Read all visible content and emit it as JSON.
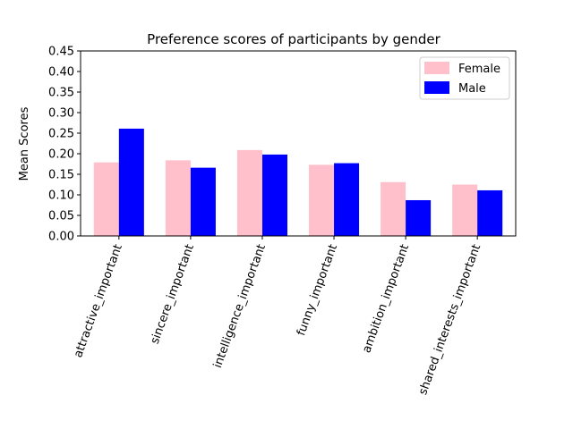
{
  "chart_data": {
    "type": "bar",
    "title": "Preference scores of participants by gender",
    "xlabel": "",
    "ylabel": "Mean Scores",
    "categories": [
      "attractive_important",
      "sincere_important",
      "intelligence_important",
      "funny_important",
      "ambition_important",
      "shared_interests_important"
    ],
    "series": [
      {
        "name": "Female",
        "color": "#ffc0cb",
        "values": [
          0.179,
          0.184,
          0.209,
          0.173,
          0.131,
          0.125
        ]
      },
      {
        "name": "Male",
        "color": "#0000ff",
        "values": [
          0.261,
          0.166,
          0.198,
          0.177,
          0.087,
          0.111
        ]
      }
    ],
    "ylim": [
      0,
      0.45
    ],
    "yticks": [
      "0.00",
      "0.05",
      "0.10",
      "0.15",
      "0.20",
      "0.25",
      "0.30",
      "0.35",
      "0.40",
      "0.45"
    ],
    "grid": false,
    "legend_position": "top-right"
  }
}
